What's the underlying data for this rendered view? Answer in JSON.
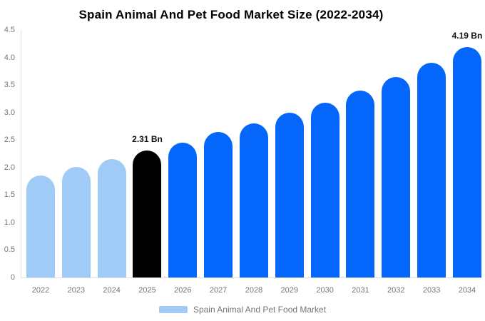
{
  "chart_data": {
    "type": "bar",
    "title": "Spain Animal And Pet Food Market Size (2022-2034)",
    "xlabel": "",
    "ylabel": "",
    "unit": "Bn",
    "categories": [
      "2022",
      "2023",
      "2024",
      "2025",
      "2026",
      "2027",
      "2028",
      "2029",
      "2030",
      "2031",
      "2032",
      "2033",
      "2034"
    ],
    "values": [
      1.85,
      2.01,
      2.15,
      2.31,
      2.45,
      2.64,
      2.8,
      3.0,
      3.18,
      3.4,
      3.65,
      3.9,
      4.19
    ],
    "ylim": [
      0,
      4.5
    ],
    "y_ticks": [
      "0",
      "0.5",
      "1.0",
      "1.5",
      "2.0",
      "2.5",
      "3.0",
      "3.5",
      "4.0",
      "4.5"
    ],
    "grid": false,
    "legend": {
      "position": "bottom",
      "label": "Spain Animal And Pet Food Market"
    },
    "annotations": [
      {
        "category": "2025",
        "text": "2.31 Bn"
      },
      {
        "category": "2034",
        "text": "4.19 Bn"
      }
    ],
    "colors": {
      "historical": "#a0cbf7",
      "base_year": "#000000",
      "forecast": "#0566fb",
      "axis_line": "#e0e0e0",
      "tick_label": "#757575",
      "annotation": "#111111"
    },
    "bar_color_keys": [
      "historical",
      "historical",
      "historical",
      "base_year",
      "forecast",
      "forecast",
      "forecast",
      "forecast",
      "forecast",
      "forecast",
      "forecast",
      "forecast",
      "forecast"
    ]
  }
}
